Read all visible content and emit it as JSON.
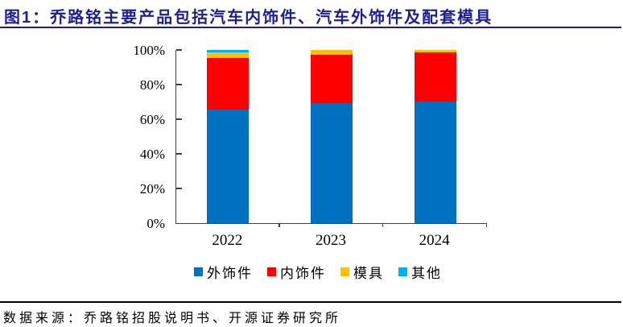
{
  "title": "图1：乔路铭主要产品包括汽车内饰件、汽车外饰件及配套模具",
  "footer": {
    "source_text": "数据来源：乔路铭招股说明书、开源证券研究所"
  },
  "colors": {
    "title_navy": "#1e1e8f",
    "axis": "#404040",
    "exterior_blue": "#0070C0",
    "interior_red": "#FF0000",
    "mold_yellow": "#FFC000",
    "other_cyan": "#00B0F0"
  },
  "chart_data": {
    "type": "bar",
    "stacked": true,
    "title": "",
    "xlabel": "",
    "ylabel": "",
    "categories": [
      "2022",
      "2023",
      "2024"
    ],
    "series": [
      {
        "name": "外饰件",
        "color": "#0070C0",
        "values": [
          65.7,
          69.3,
          70.1
        ]
      },
      {
        "name": "内饰件",
        "color": "#FF0000",
        "values": [
          29.7,
          27.7,
          28.7
        ]
      },
      {
        "name": "模具",
        "color": "#FFC000",
        "values": [
          3.1,
          2.9,
          1.1
        ]
      },
      {
        "name": "其他",
        "color": "#00B0F0",
        "values": [
          1.5,
          0.1,
          0.1
        ]
      }
    ],
    "ylim": [
      0,
      100
    ],
    "yticks": [
      "0%",
      "20%",
      "40%",
      "60%",
      "80%",
      "100%"
    ],
    "grid": false,
    "legend_position": "bottom"
  }
}
